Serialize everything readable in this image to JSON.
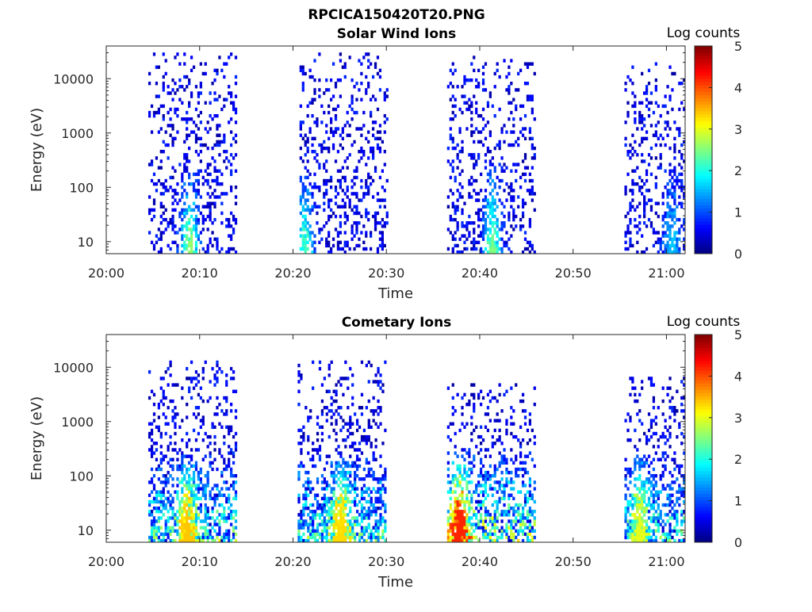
{
  "figure": {
    "title": "RPCICA150420T20.PNG"
  },
  "chart_data": [
    {
      "type": "heatmap",
      "title": "Solar Wind Ions",
      "xlabel": "Time",
      "ylabel": "Energy (eV)",
      "x_ticks": [
        "20:00",
        "20:10",
        "20:20",
        "20:30",
        "20:40",
        "20:50",
        "21:00"
      ],
      "y_ticks": [
        "10",
        "100",
        "1000",
        "10000"
      ],
      "y_scale": "log",
      "ylim": [
        6,
        40000
      ],
      "xlim_minutes": [
        0,
        62
      ],
      "colorbar": {
        "label": "Log counts",
        "ticks": [
          "0",
          "1",
          "2",
          "3",
          "4",
          "5"
        ],
        "range": [
          0,
          5
        ],
        "colormap": "jet"
      },
      "bursts": [
        {
          "start_min": 4.5,
          "end_min": 14.0,
          "core_min": 8.8,
          "core_log_counts": 2.3,
          "max_energy_ev": 30000
        },
        {
          "start_min": 20.7,
          "end_min": 30.0,
          "core_min": 21.2,
          "core_log_counts": 1.9,
          "max_energy_ev": 30000
        },
        {
          "start_min": 36.5,
          "end_min": 46.0,
          "core_min": 41.2,
          "core_log_counts": 2.2,
          "max_energy_ev": 25000
        },
        {
          "start_min": 55.5,
          "end_min": 62.0,
          "core_min": 60.5,
          "core_log_counts": 1.3,
          "max_energy_ev": 20000
        }
      ]
    },
    {
      "type": "heatmap",
      "title": "Cometary Ions",
      "xlabel": "Time",
      "ylabel": "Energy (eV)",
      "x_ticks": [
        "20:00",
        "20:10",
        "20:20",
        "20:30",
        "20:40",
        "20:50",
        "21:00"
      ],
      "y_ticks": [
        "10",
        "100",
        "1000",
        "10000"
      ],
      "y_scale": "log",
      "ylim": [
        6,
        40000
      ],
      "xlim_minutes": [
        0,
        62
      ],
      "colorbar": {
        "label": "Log counts",
        "ticks": [
          "0",
          "1",
          "2",
          "3",
          "4",
          "5"
        ],
        "range": [
          0,
          5
        ],
        "colormap": "jet"
      },
      "bursts": [
        {
          "start_min": 4.5,
          "end_min": 14.0,
          "core_min": 8.5,
          "core_log_counts": 3.1,
          "max_energy_ev": 12000
        },
        {
          "start_min": 20.5,
          "end_min": 30.0,
          "core_min": 25.0,
          "core_log_counts": 3.0,
          "max_energy_ev": 13000
        },
        {
          "start_min": 36.5,
          "end_min": 46.0,
          "core_min": 37.7,
          "core_log_counts": 3.9,
          "max_energy_ev": 5000
        },
        {
          "start_min": 55.5,
          "end_min": 62.0,
          "core_min": 57.0,
          "core_log_counts": 2.7,
          "max_energy_ev": 6000
        }
      ]
    }
  ]
}
